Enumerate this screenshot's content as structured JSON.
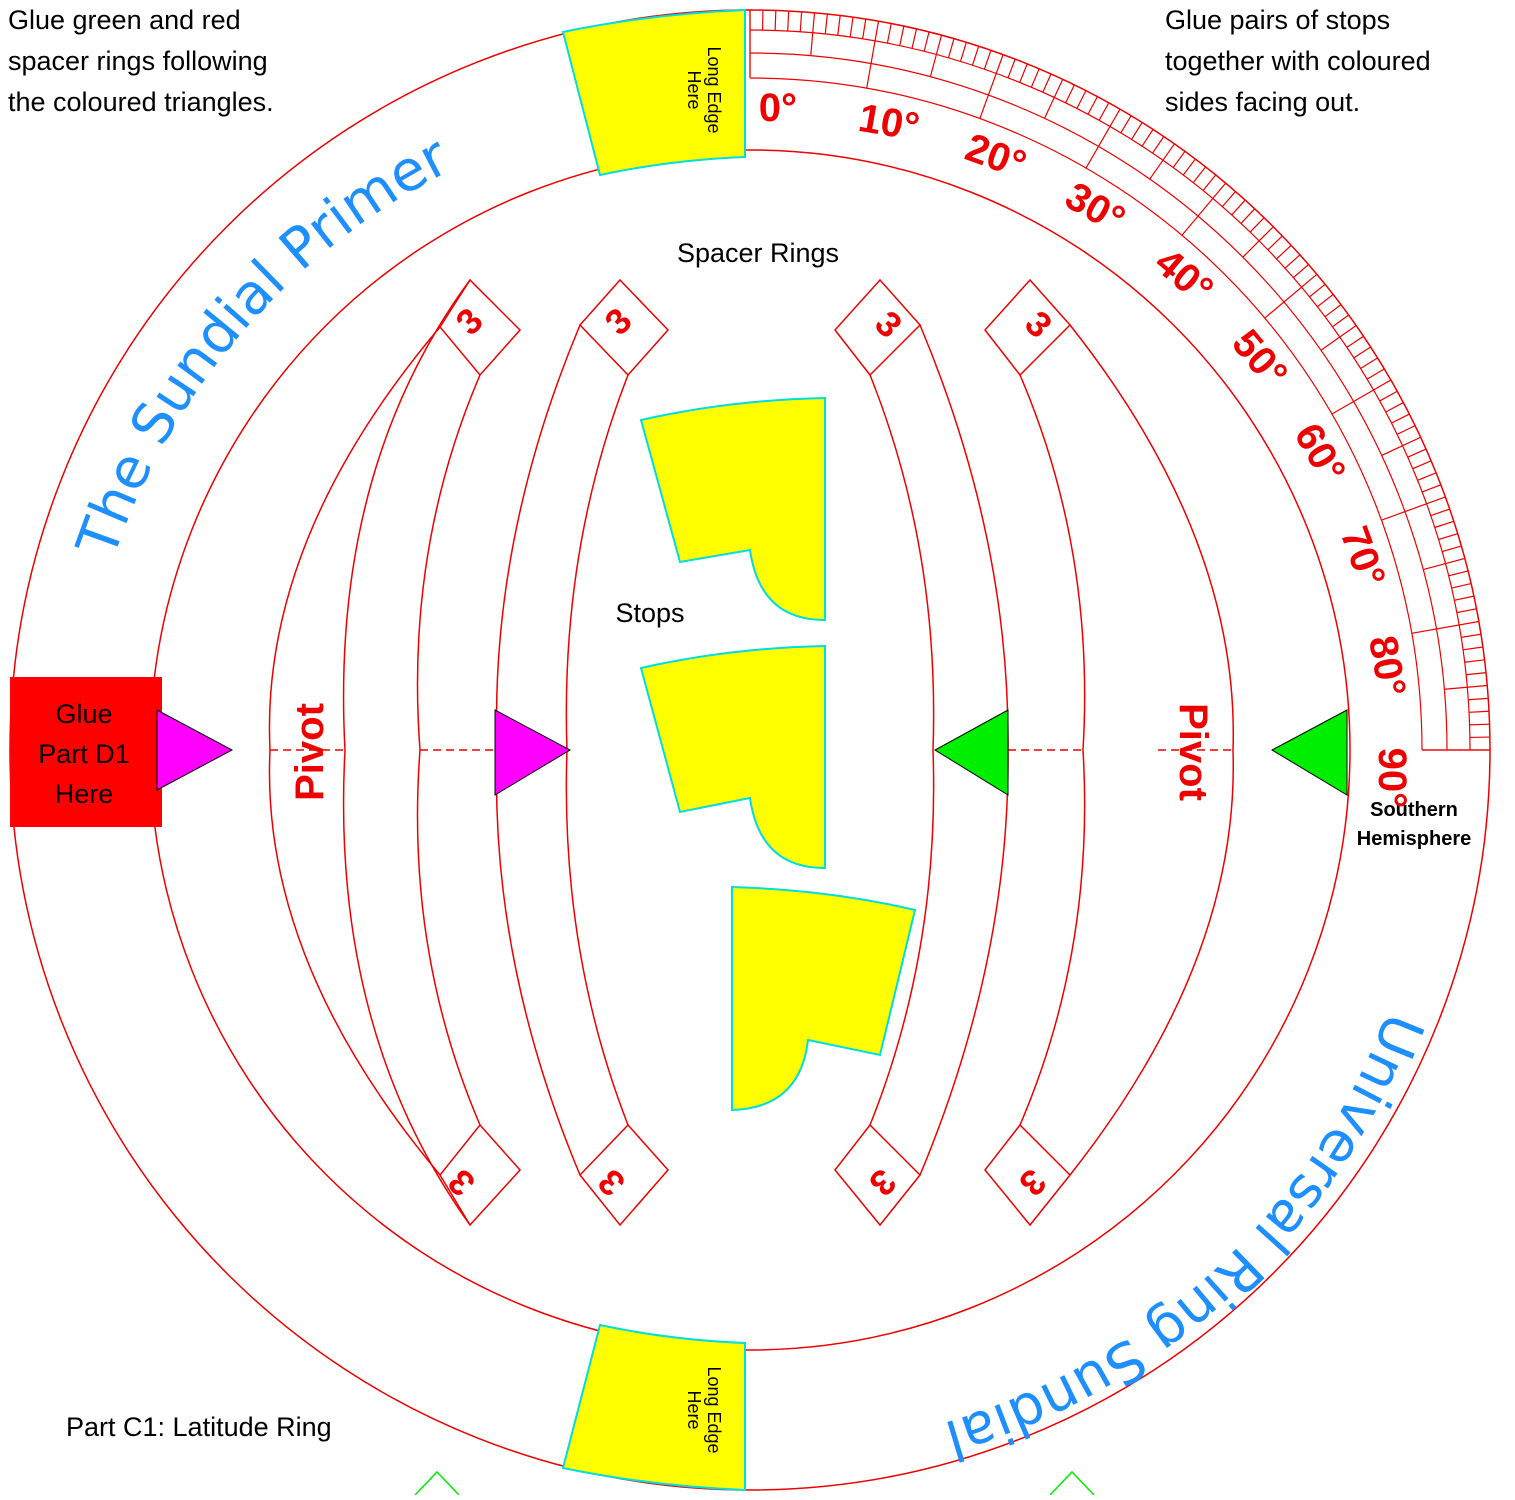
{
  "notes": {
    "glue_rings": [
      "Glue green and red",
      "spacer rings following",
      "the coloured triangles."
    ],
    "glue_stops": [
      "Glue pairs of stops",
      "together with coloured",
      "sides facing out."
    ],
    "part_label": "Part C1: Latitude Ring",
    "spacer_rings": "Spacer Rings",
    "stops": "Stops"
  },
  "ring": {
    "title_top": "The Sundial Primer",
    "title_bottom": "Universal Ring Sundial",
    "glue_tab": [
      "Glue",
      "Part D1",
      "Here"
    ],
    "long_edge": [
      "Long Edge",
      "Here"
    ],
    "pivot_label": "Pivot",
    "ring_number": "3",
    "hemisphere": [
      "Southern",
      "Hemisphere"
    ]
  },
  "latitude_scale": {
    "labels": [
      "0°",
      "10°",
      "20°",
      "30°",
      "40°",
      "50°",
      "60°",
      "70°",
      "80°",
      "90°"
    ],
    "min": 0,
    "max": 90,
    "minor_step": 1,
    "major_step": 10
  },
  "colors": {
    "line": "#ee0000",
    "tab_red": "#ff0000",
    "yellow": "#ffff00",
    "cyan": "#00dddd",
    "magenta": "#ff00ff",
    "green": "#00ee00",
    "title_blue": "#1e8fff"
  }
}
